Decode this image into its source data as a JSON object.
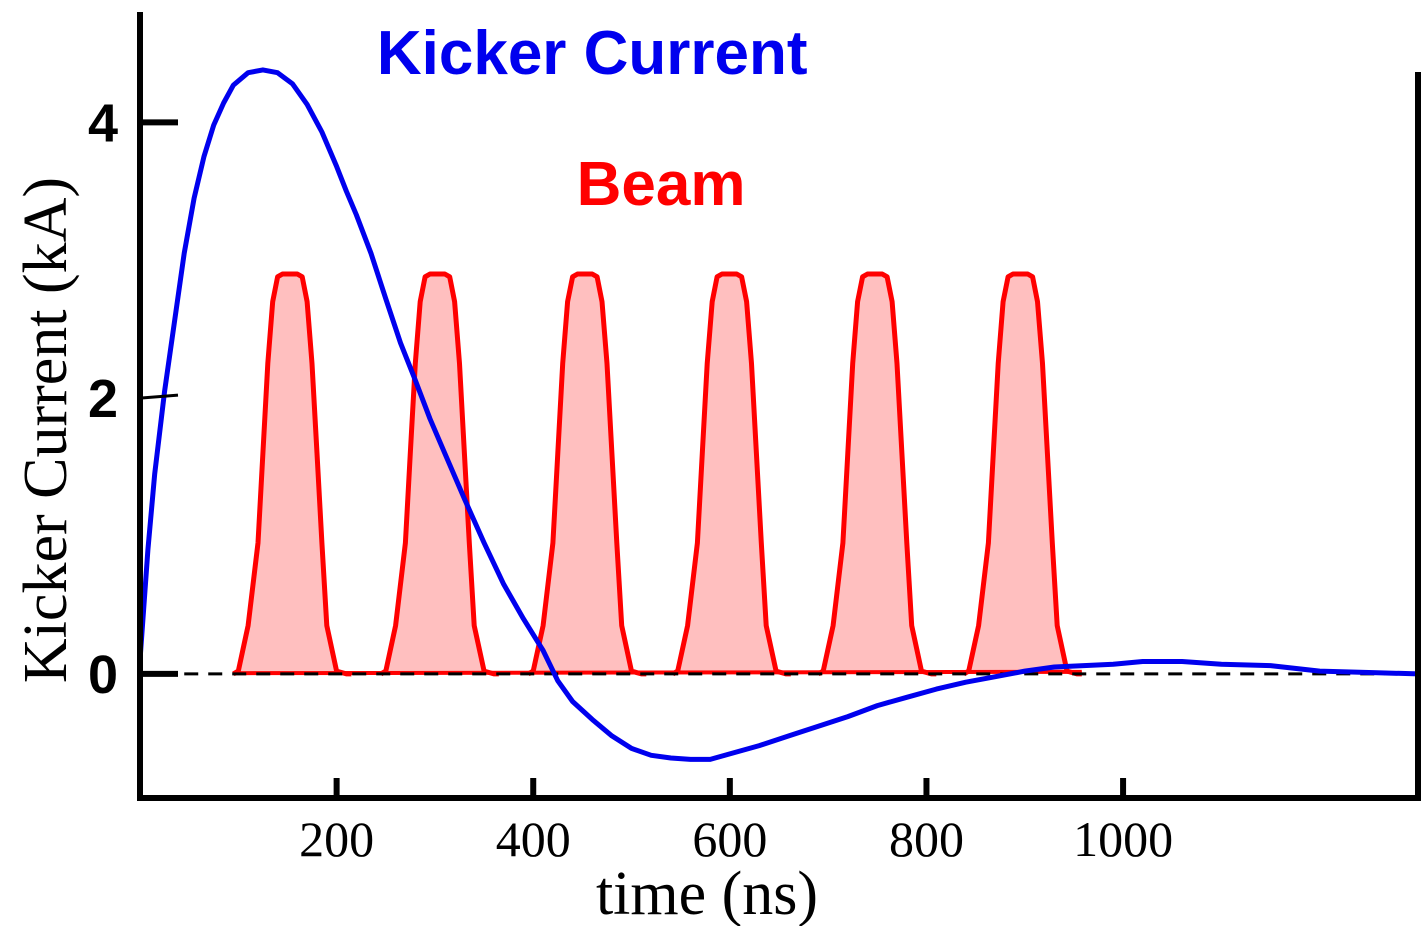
{
  "chart_data": {
    "type": "line",
    "xlabel": "time  (ns)",
    "ylabel": "Kicker Current (kA)",
    "xlim": [
      0,
      1300
    ],
    "ylim": [
      -0.9,
      4.8
    ],
    "x_ticks": [
      {
        "value": 200,
        "label": "200"
      },
      {
        "value": 400,
        "label": "400"
      },
      {
        "value": 600,
        "label": "600"
      },
      {
        "value": 800,
        "label": "800"
      },
      {
        "value": 1000,
        "label": "1000"
      }
    ],
    "y_ticks": [
      {
        "value": 0,
        "label": "0"
      },
      {
        "value": 2,
        "label": "2"
      },
      {
        "value": 4,
        "label": "4"
      }
    ],
    "baseline": {
      "y": 0,
      "style": "dashed",
      "color": "#000000"
    },
    "series": [
      {
        "name": "Kicker Current",
        "color": "#0000ee",
        "style": "line",
        "x": [
          0,
          8,
          15,
          25,
          35,
          45,
          55,
          65,
          75,
          85,
          95,
          110,
          125,
          140,
          155,
          170,
          185,
          200,
          210,
          220,
          235,
          250,
          265,
          280,
          295,
          310,
          330,
          350,
          370,
          390,
          410,
          425,
          440,
          460,
          480,
          500,
          520,
          540,
          560,
          580,
          600,
          630,
          660,
          690,
          720,
          750,
          780,
          810,
          840,
          870,
          900,
          930,
          960,
          990,
          1020,
          1060,
          1100,
          1150,
          1200,
          1250,
          1300
        ],
        "y": [
          0.1,
          0.9,
          1.45,
          2.05,
          2.55,
          3.05,
          3.45,
          3.75,
          3.98,
          4.14,
          4.27,
          4.36,
          4.38,
          4.36,
          4.28,
          4.13,
          3.93,
          3.68,
          3.5,
          3.33,
          3.05,
          2.72,
          2.4,
          2.13,
          1.85,
          1.6,
          1.27,
          0.95,
          0.65,
          0.4,
          0.17,
          -0.05,
          -0.2,
          -0.33,
          -0.45,
          -0.54,
          -0.59,
          -0.61,
          -0.62,
          -0.62,
          -0.58,
          -0.52,
          -0.45,
          -0.38,
          -0.31,
          -0.23,
          -0.17,
          -0.11,
          -0.06,
          -0.02,
          0.02,
          0.05,
          0.06,
          0.07,
          0.09,
          0.09,
          0.07,
          0.06,
          0.02,
          0.01,
          0.0
        ]
      },
      {
        "name": "Beam",
        "color": "#ff0000",
        "fill": "#ffbfbf",
        "style": "pulses",
        "pulse_centers": [
          155,
          305,
          455,
          602,
          750,
          898
        ],
        "pulse_peak": 2.9,
        "pulse_profile": {
          "dx": [
            -60,
            -55,
            -45,
            -35,
            -30,
            -25,
            -20,
            -15,
            -10,
            -5,
            0,
            5,
            10,
            15,
            20,
            25,
            30,
            35,
            45,
            55,
            60
          ],
          "y": [
            0.0,
            0.02,
            0.35,
            0.95,
            1.6,
            2.25,
            2.7,
            2.88,
            2.9,
            2.9,
            2.9,
            2.9,
            2.88,
            2.7,
            2.25,
            1.6,
            0.95,
            0.35,
            0.02,
            0.0,
            0.0
          ]
        }
      }
    ],
    "annotations": [
      {
        "text": "Kicker Current",
        "color": "#0000ee",
        "x": 460,
        "y": 4.35
      },
      {
        "text": "Beam",
        "color": "#ff0000",
        "x": 530,
        "y": 3.4
      }
    ]
  }
}
